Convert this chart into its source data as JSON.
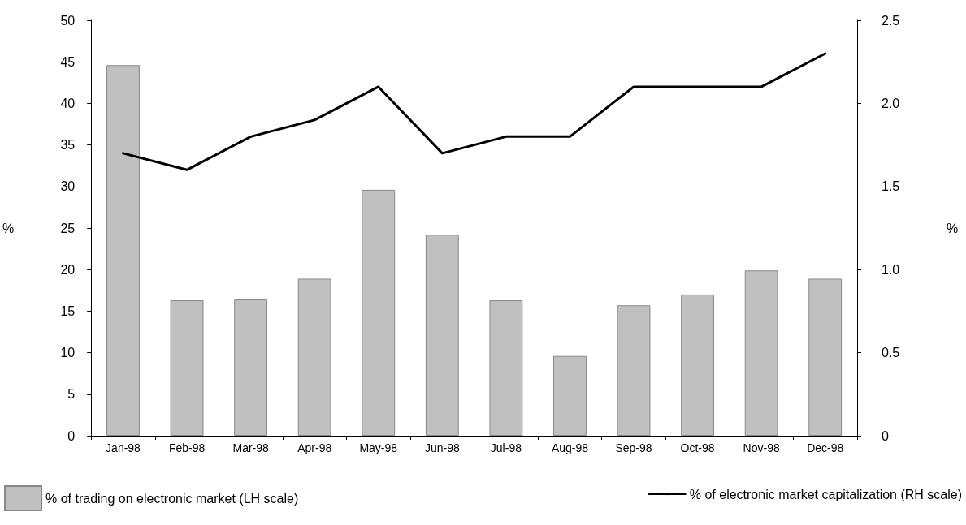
{
  "chart_data": {
    "type": "bar",
    "ylabel": "%",
    "y2label": "%",
    "categories": [
      "Jan-98",
      "Feb-98",
      "Mar-98",
      "Apr-98",
      "May-98",
      "Jun-98",
      "Jul-98",
      "Aug-98",
      "Sep-98",
      "Oct-98",
      "Nov-98",
      "Dec-98"
    ],
    "series": [
      {
        "name": "% of trading on electronic market (LH scale)",
        "color": "#c0c0c0",
        "values": [
          44.6,
          16.3,
          16.4,
          18.9,
          29.6,
          24.2,
          16.3,
          9.6,
          15.7,
          17.0,
          19.9,
          18.9
        ]
      },
      {
        "name": "% of electronic market capitalization (RH scale)",
        "type": "line",
        "axis": "y2",
        "color": "#000000",
        "values": [
          1.7,
          1.6,
          1.8,
          1.9,
          2.1,
          1.7,
          1.8,
          1.8,
          2.1,
          2.1,
          2.1,
          2.3
        ]
      }
    ],
    "ylim": [
      0,
      50
    ],
    "yticks": [
      0,
      5,
      10,
      15,
      20,
      25,
      30,
      35,
      40,
      45,
      50
    ],
    "y2lim": [
      0,
      2.5
    ],
    "y2ticks": [
      0,
      {
        "value": 0.5,
        "label": "0.5"
      },
      {
        "value": 1,
        "label": "1.0"
      },
      {
        "value": 1.5,
        "label": "1.5"
      },
      {
        "value": 2,
        "label": "2.0"
      },
      {
        "value": 2.5,
        "label": "2.5"
      }
    ],
    "grid": false,
    "legend": "bottom",
    "marker": "none",
    "line_style": "solid"
  }
}
